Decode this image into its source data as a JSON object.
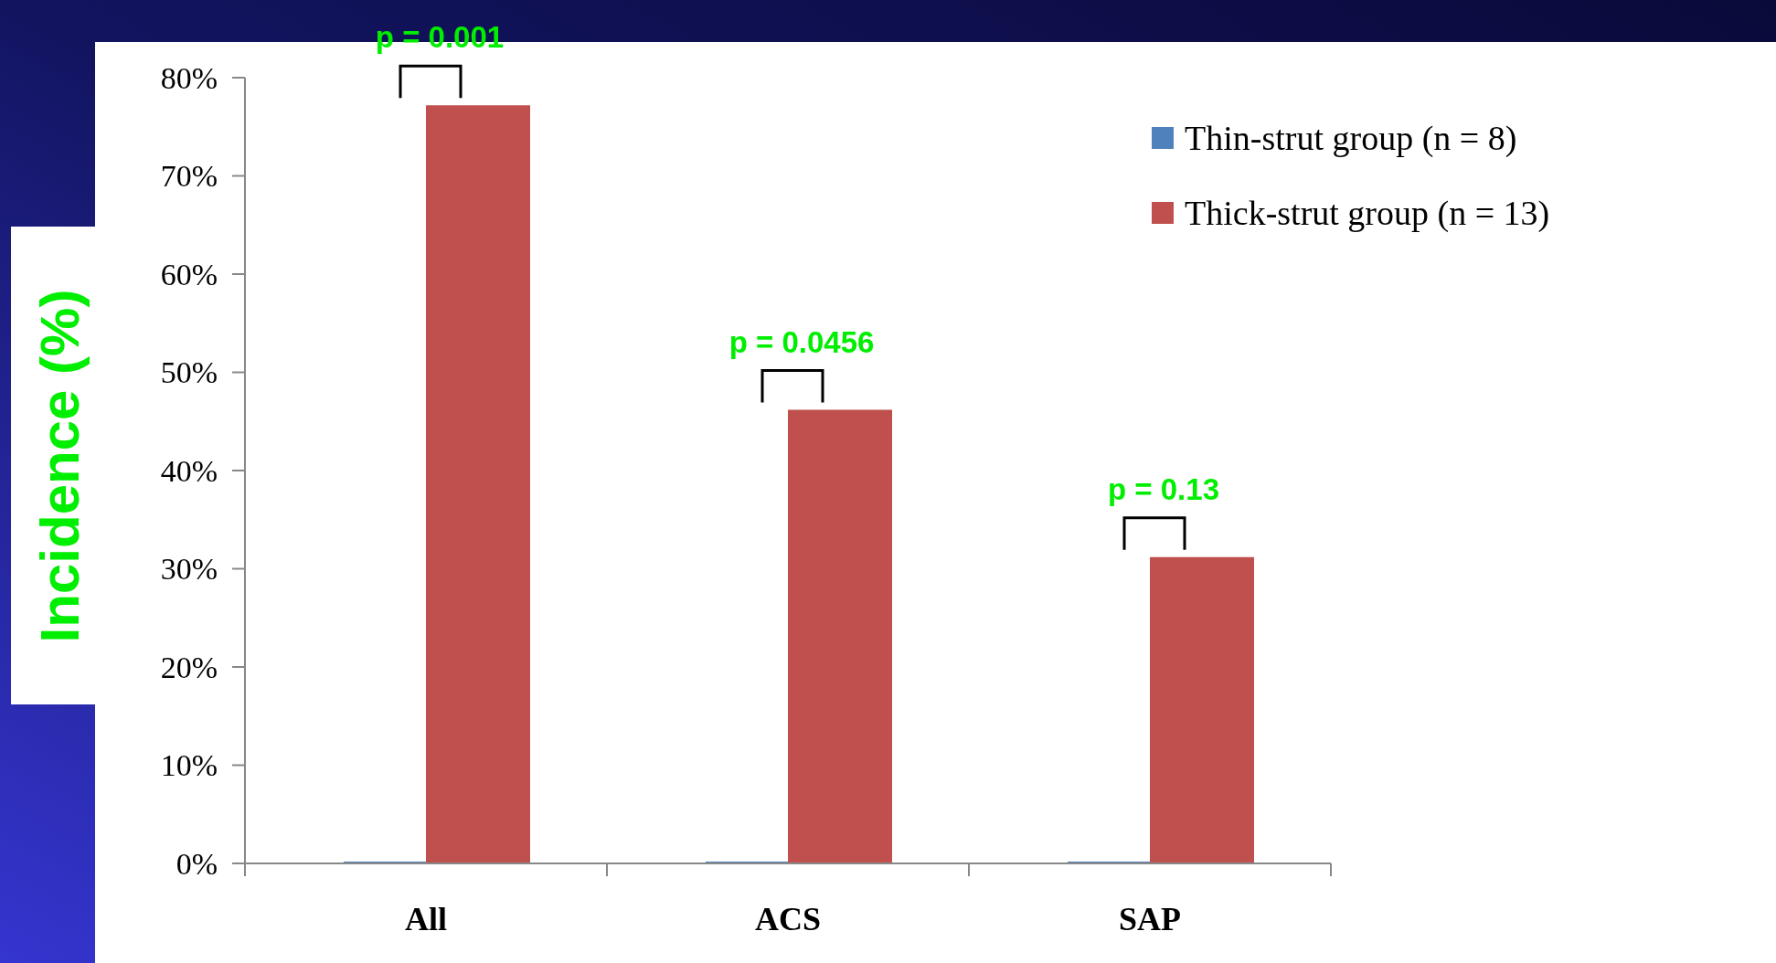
{
  "chart_data": {
    "type": "bar",
    "ylabel": "Incidence (%)",
    "categories": [
      "All",
      "ACS",
      "SAP"
    ],
    "series": [
      {
        "name": "Thin-strut group (n = 8)",
        "color": "#4f81bd",
        "values": [
          0,
          0,
          0
        ]
      },
      {
        "name": "Thick-strut group (n = 13)",
        "color": "#c0504d",
        "values": [
          77,
          46,
          31
        ]
      }
    ],
    "ylim": [
      0,
      80
    ],
    "yticks": [
      {
        "value": 0,
        "label": "0%"
      },
      {
        "value": 10,
        "label": "10%"
      },
      {
        "value": 20,
        "label": "20%"
      },
      {
        "value": 30,
        "label": "30%"
      },
      {
        "value": 40,
        "label": "40%"
      },
      {
        "value": 50,
        "label": "50%"
      },
      {
        "value": 60,
        "label": "60%"
      },
      {
        "value": 70,
        "label": "70%"
      },
      {
        "value": 80,
        "label": "80%"
      }
    ],
    "annotations": [
      "p = 0.001",
      "p = 0.0456",
      "p = 0.13"
    ],
    "legend": "top right"
  }
}
